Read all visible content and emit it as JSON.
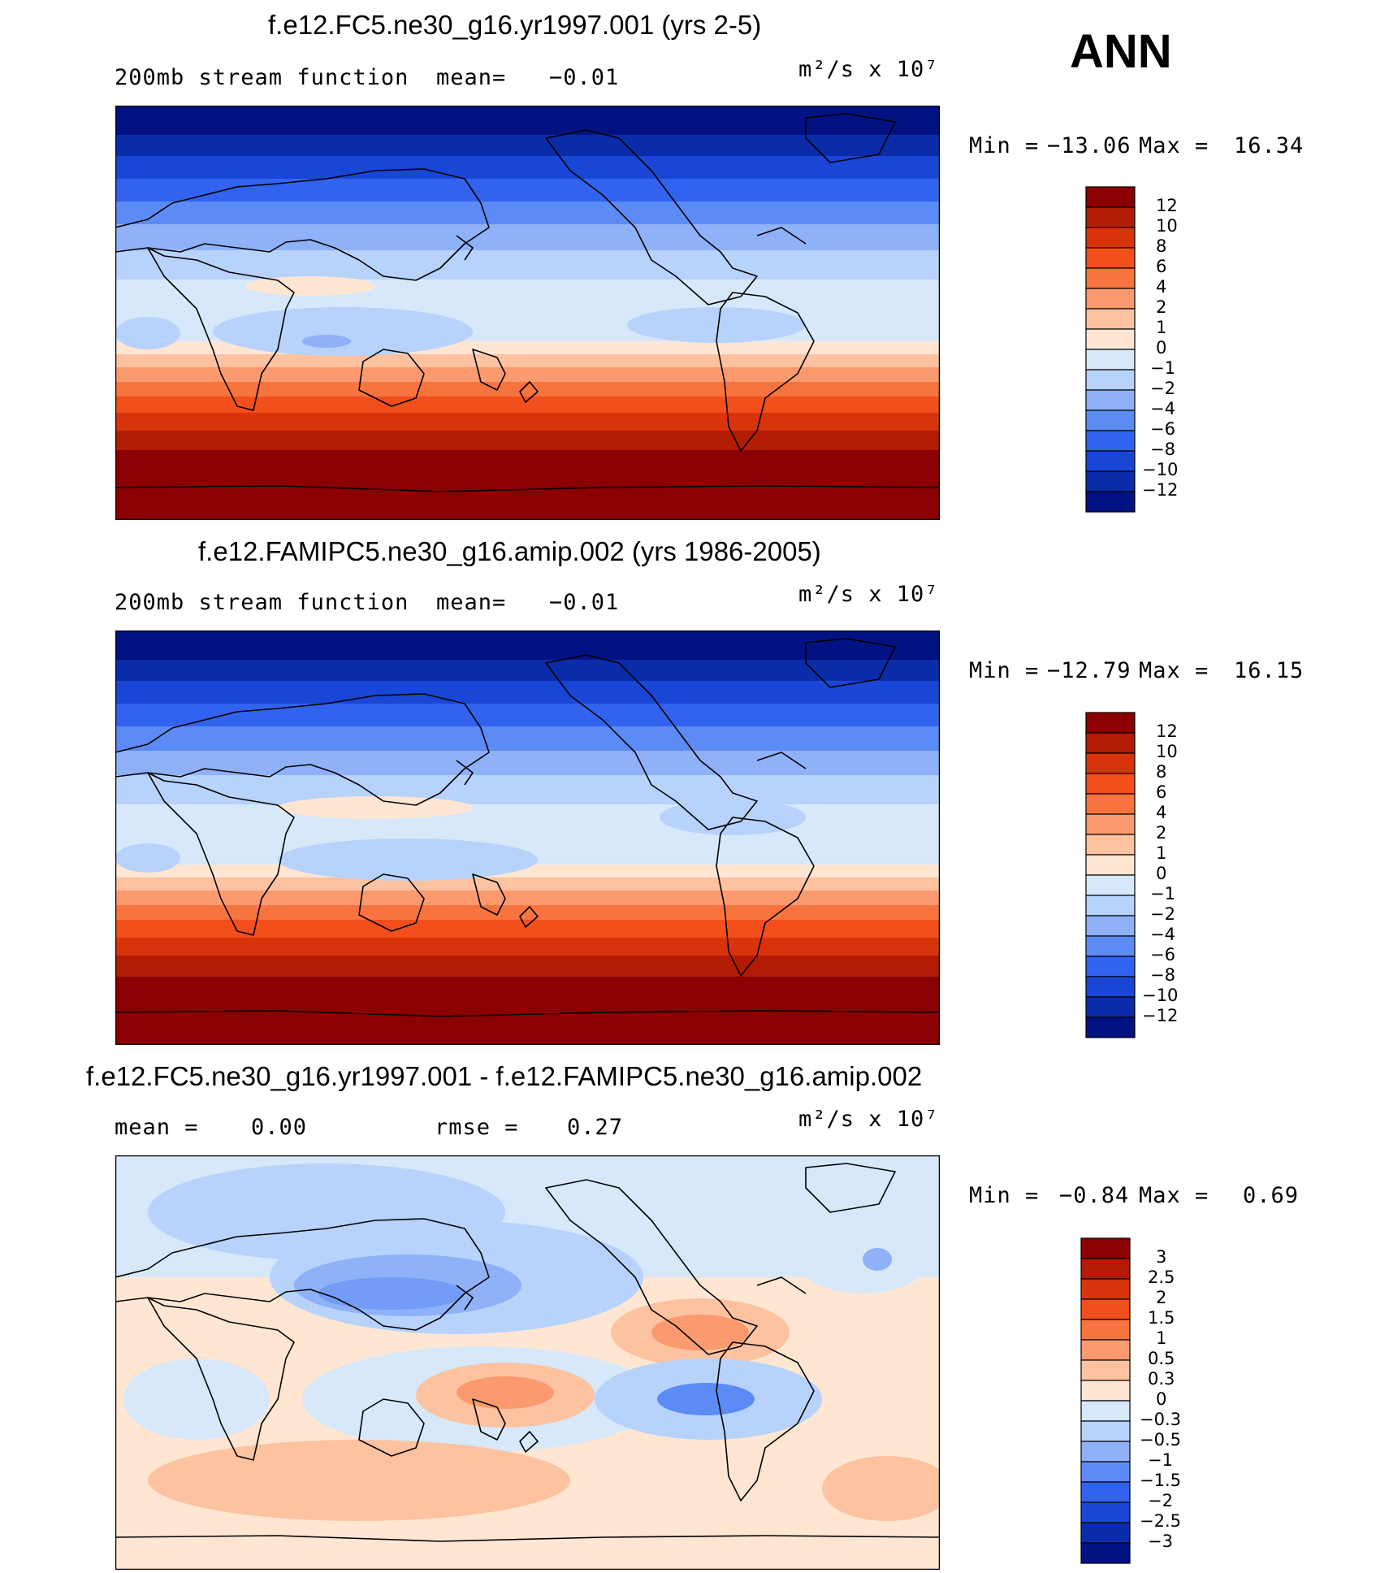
{
  "season": "ANN",
  "panels": [
    {
      "title": "f.e12.FC5.ne30_g16.yr1997.001 (yrs 2-5)",
      "left_text": "200mb stream function",
      "stat1_label": "mean=",
      "stat1_value": "−0.01",
      "units": "m²/s x 10⁷",
      "min_label": "Min =",
      "min_value": "−13.06",
      "max_label": "Max =",
      "max_value": "16.34"
    },
    {
      "title": "f.e12.FAMIPC5.ne30_g16.amip.002 (yrs 1986-2005)",
      "left_text": "200mb stream function",
      "stat1_label": "mean=",
      "stat1_value": "−0.01",
      "units": "m²/s x 10⁷",
      "min_label": "Min =",
      "min_value": "−12.79",
      "max_label": "Max =",
      "max_value": "16.15"
    },
    {
      "title": "f.e12.FC5.ne30_g16.yr1997.001 - f.e12.FAMIPC5.ne30_g16.amip.002",
      "left_text": "mean =",
      "left_value": "0.00",
      "stat1_label": "rmse =",
      "stat1_value": "0.27",
      "units": "m²/s x 10⁷",
      "min_label": "Min =",
      "min_value": "−0.84",
      "max_label": "Max =",
      "max_value": "0.69"
    }
  ],
  "colorbars": {
    "main": {
      "labels": [
        "12",
        "10",
        "8",
        "6",
        "4",
        "2",
        "1",
        "0",
        "−1",
        "−2",
        "−4",
        "−6",
        "−8",
        "−10",
        "−12"
      ],
      "colors": [
        "#8b0000",
        "#b21c04",
        "#d8340c",
        "#f24f1c",
        "#f8743e",
        "#fb9a6e",
        "#fdc2a0",
        "#fee6d2",
        "#d6e8fa",
        "#b7d2fb",
        "#8eb1f8",
        "#5d8bf5",
        "#3163ee",
        "#1a46d6",
        "#0b2ca8",
        "#031282"
      ]
    },
    "diff": {
      "labels": [
        "3",
        "2.5",
        "2",
        "1.5",
        "1",
        "0.5",
        "0.3",
        "0",
        "−0.3",
        "−0.5",
        "−1",
        "−1.5",
        "−2",
        "−2.5",
        "−3"
      ],
      "colors": [
        "#8b0000",
        "#b21c04",
        "#d8340c",
        "#f24f1c",
        "#f8743e",
        "#fb9a6e",
        "#fdc2a0",
        "#fee6d2",
        "#d6e8fa",
        "#b7d2fb",
        "#8eb1f8",
        "#5d8bf5",
        "#3163ee",
        "#1a46d6",
        "#0b2ca8",
        "#031282"
      ]
    }
  }
}
